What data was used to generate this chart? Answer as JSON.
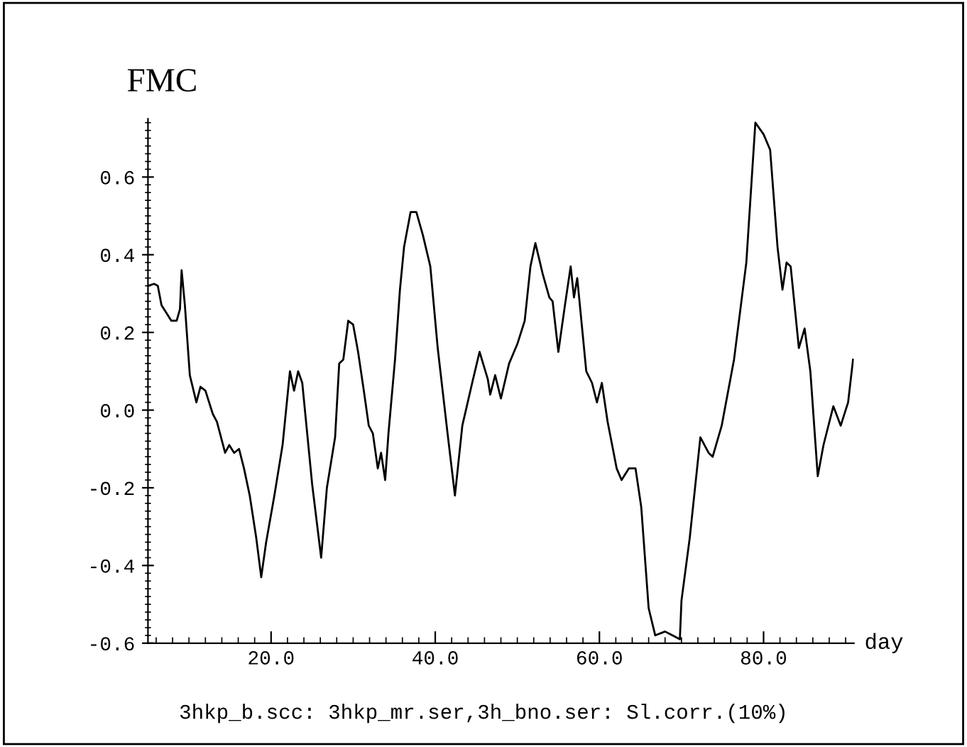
{
  "chart_data": {
    "type": "line",
    "title": "FMC",
    "xlabel": "day",
    "annotations": [
      "3hkp_b.scc: 3hkp_mr.ser,3h_bno.ser: Sl.corr.(10%)"
    ],
    "x": [
      5,
      5.75,
      6.2,
      6.65,
      7.25,
      7.85,
      8.5,
      8.9,
      9.1,
      9.5,
      10.1,
      10.9,
      11.4,
      12,
      12.9,
      13.4,
      14.4,
      14.9,
      15.5,
      16.1,
      16.7,
      17.4,
      18.2,
      18.8,
      19.4,
      20.4,
      21.4,
      22.3,
      22.8,
      23.3,
      23.8,
      25,
      26.1,
      26.8,
      27.8,
      28.3,
      28.8,
      29.4,
      30,
      30.6,
      31.3,
      31.9,
      32.4,
      33,
      33.4,
      33.9,
      34.3,
      35.1,
      35.7,
      36.2,
      37,
      37.7,
      38.5,
      39.4,
      40.3,
      41.5,
      42.4,
      43.3,
      44.5,
      45.4,
      46.4,
      46.7,
      47.3,
      48,
      49,
      50,
      50.9,
      51.6,
      52.2,
      53.1,
      53.9,
      54.3,
      55,
      55.8,
      56.5,
      56.9,
      57.3,
      58.4,
      59.1,
      59.7,
      60.3,
      61,
      62.1,
      62.7,
      63.6,
      64.4,
      65.1,
      66,
      66.8,
      68,
      68.9,
      69.8,
      70,
      71,
      72.3,
      73.3,
      73.8,
      74.9,
      76.4,
      77.9,
      79,
      80,
      80.8,
      81.7,
      82.3,
      82.8,
      83.3,
      84.3,
      85,
      85.7,
      86.6,
      87.3,
      88.5,
      89.4,
      90.3,
      90.9
    ],
    "series": [
      {
        "color": "#000000",
        "values": [
          0.32,
          0.325,
          0.32,
          0.27,
          0.25,
          0.23,
          0.23,
          0.26,
          0.36,
          0.27,
          0.09,
          0.02,
          0.06,
          0.05,
          -0.01,
          -0.03,
          -0.11,
          -0.09,
          -0.11,
          -0.1,
          -0.15,
          -0.22,
          -0.33,
          -0.43,
          -0.34,
          -0.22,
          -0.09,
          0.1,
          0.05,
          0.1,
          0.07,
          -0.19,
          -0.38,
          -0.2,
          -0.07,
          0.12,
          0.13,
          0.23,
          0.22,
          0.15,
          0.05,
          -0.04,
          -0.06,
          -0.15,
          -0.11,
          -0.18,
          -0.06,
          0.13,
          0.31,
          0.42,
          0.51,
          0.51,
          0.45,
          0.37,
          0.16,
          -0.06,
          -0.22,
          -0.04,
          0.07,
          0.15,
          0.08,
          0.04,
          0.09,
          0.03,
          0.12,
          0.17,
          0.23,
          0.37,
          0.43,
          0.35,
          0.29,
          0.28,
          0.15,
          0.27,
          0.37,
          0.29,
          0.34,
          0.1,
          0.07,
          0.02,
          0.07,
          -0.03,
          -0.15,
          -0.18,
          -0.15,
          -0.15,
          -0.25,
          -0.51,
          -0.58,
          -0.57,
          -0.58,
          -0.59,
          -0.49,
          -0.33,
          -0.07,
          -0.11,
          -0.12,
          -0.04,
          0.13,
          0.38,
          0.74,
          0.71,
          0.67,
          0.42,
          0.31,
          0.38,
          0.37,
          0.16,
          0.21,
          0.1,
          -0.17,
          -0.09,
          0.01,
          -0.04,
          0.02,
          0.13
        ]
      }
    ],
    "xlim": [
      5,
      91
    ],
    "xticks": [
      {
        "value": 20,
        "label": "20.0"
      },
      {
        "value": 40,
        "label": "40.0"
      },
      {
        "value": 60,
        "label": "60.0"
      },
      {
        "value": 80,
        "label": "80.0"
      }
    ],
    "ylim": [
      -0.6,
      0.75
    ],
    "yticks": [
      {
        "value": -0.6,
        "label": "-0.6"
      },
      {
        "value": -0.4,
        "label": "-0.4"
      },
      {
        "value": -0.2,
        "label": "-0.2"
      },
      {
        "value": 0,
        "label": "0.0"
      },
      0.2,
      0.4,
      0.6
    ],
    "grid": false,
    "marker": "none",
    "line_style": "solid"
  }
}
